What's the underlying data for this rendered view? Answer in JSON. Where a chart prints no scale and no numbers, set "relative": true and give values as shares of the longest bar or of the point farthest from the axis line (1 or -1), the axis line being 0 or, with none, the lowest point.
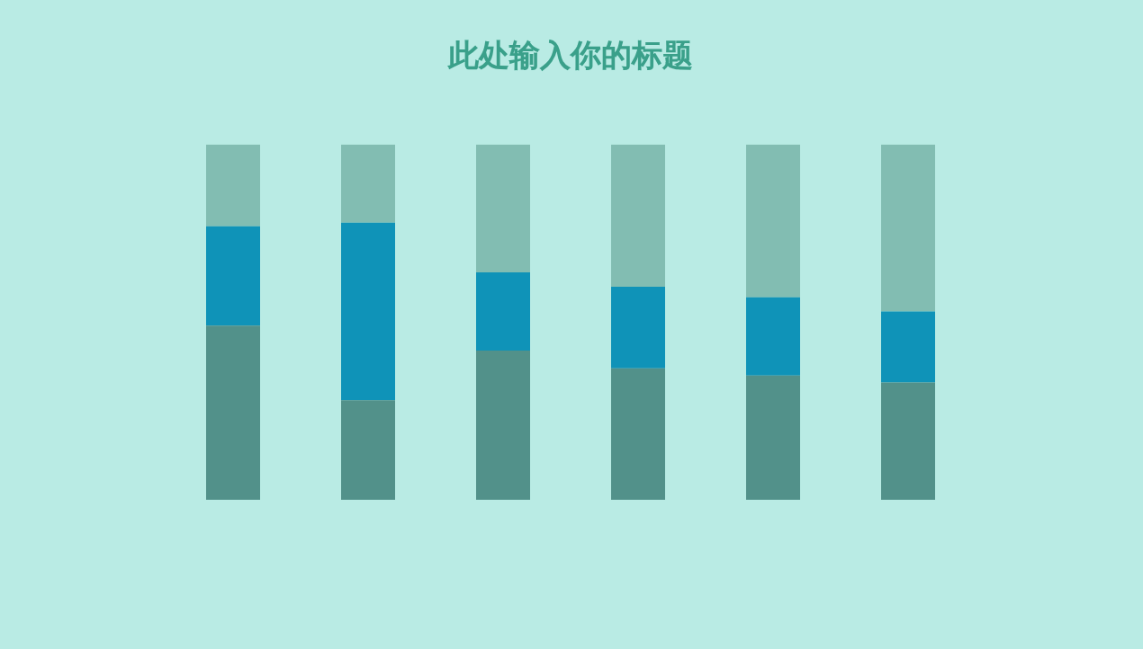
{
  "chart_data": {
    "type": "bar",
    "title": "此处输入你的标题",
    "relative": true,
    "stacked": true,
    "legend": false,
    "tick_labels": false,
    "categories": [
      null,
      null,
      null,
      null,
      null,
      null
    ],
    "series": [
      {
        "color": "#52918a",
        "values": [
          0.49,
          0.28,
          0.42,
          0.37,
          0.35,
          0.33
        ]
      },
      {
        "color": "#0f93b8",
        "values": [
          0.28,
          0.5,
          0.22,
          0.23,
          0.22,
          0.2
        ]
      },
      {
        "color": "#82bdb2",
        "values": [
          0.23,
          0.22,
          0.36,
          0.4,
          0.43,
          0.47
        ]
      }
    ]
  }
}
